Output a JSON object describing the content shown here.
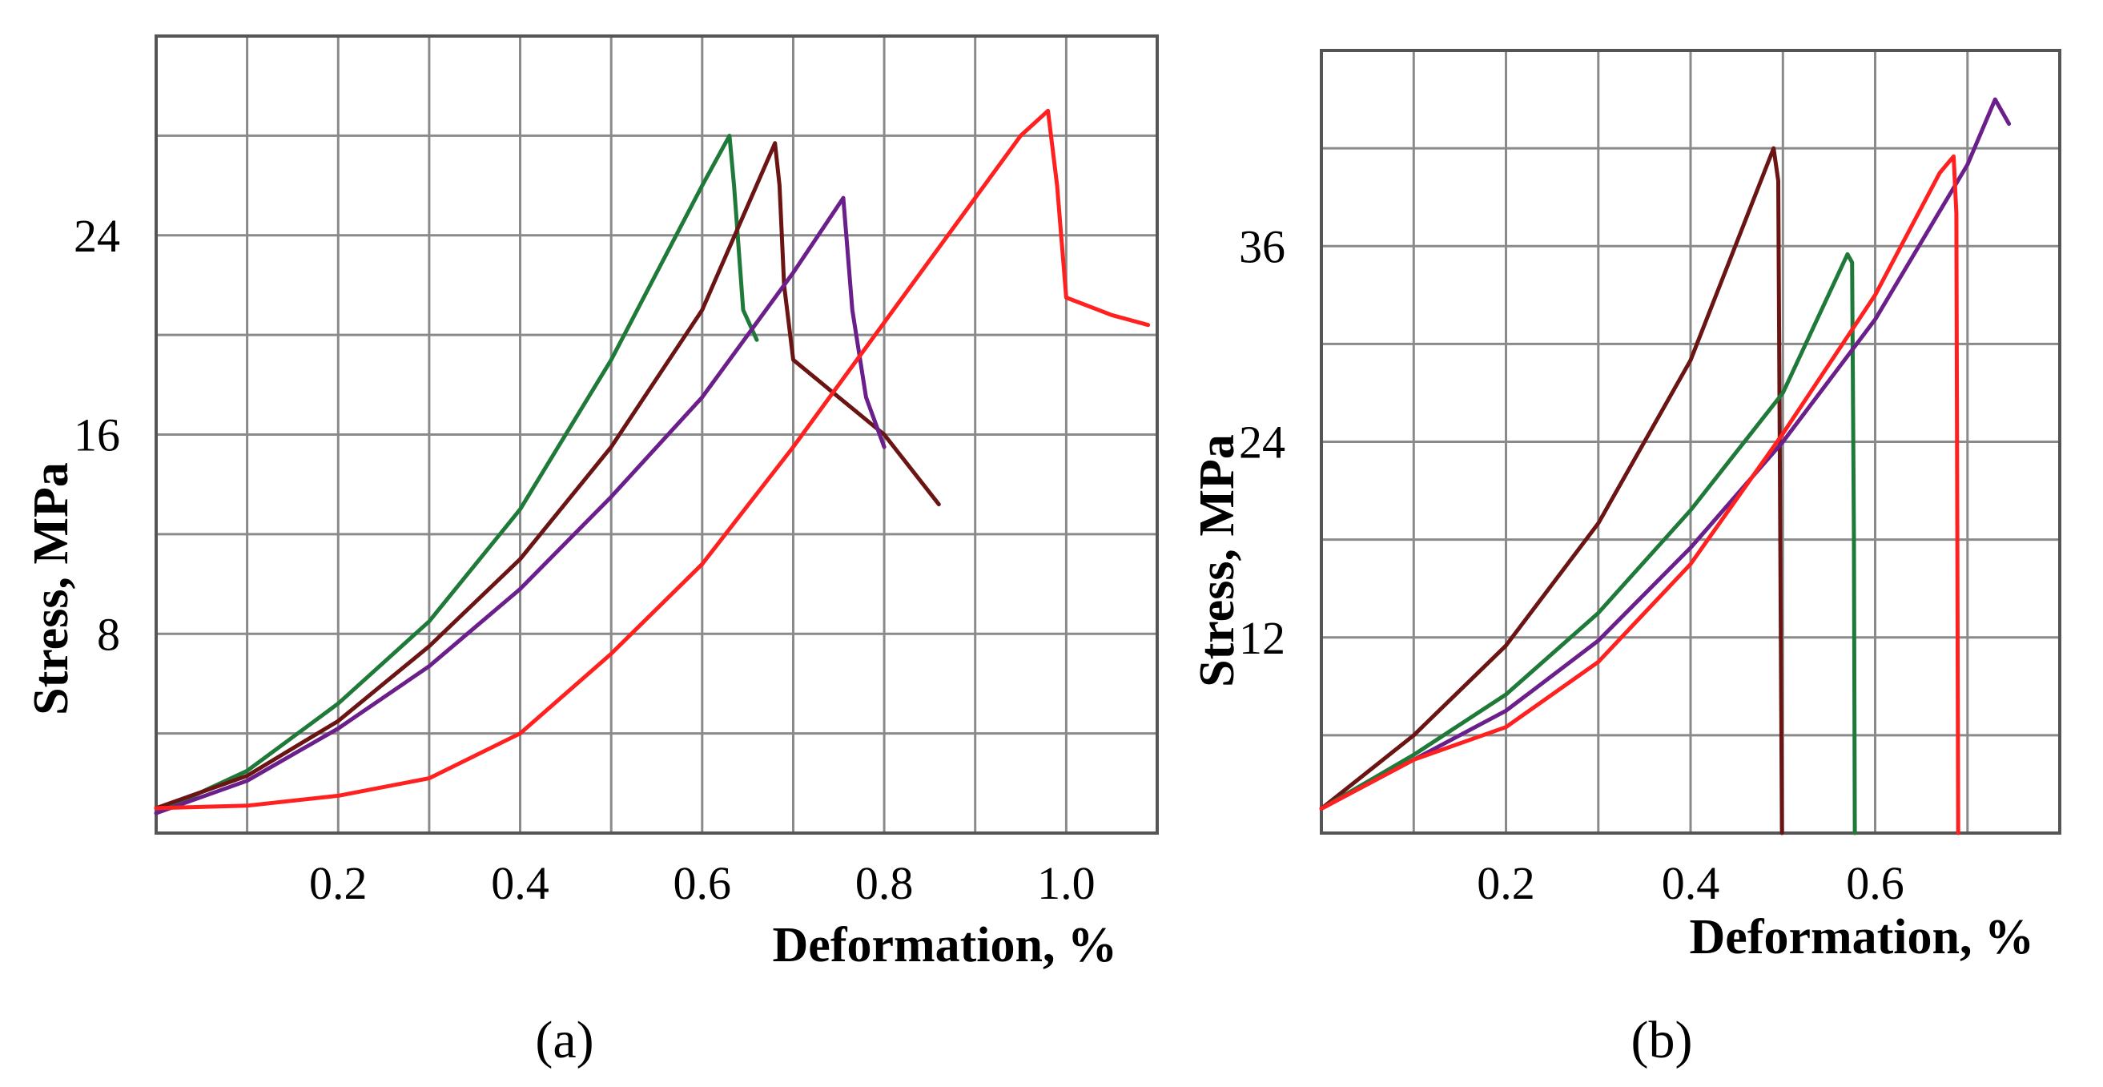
{
  "chart_data": [
    {
      "type": "line",
      "panel_label": "(a)",
      "xlabel": "Deformation, %",
      "ylabel": "Stress, MPa",
      "xlim": [
        0,
        1.1
      ],
      "ylim": [
        0,
        32
      ],
      "x_ticks": [
        0.2,
        0.4,
        0.6,
        0.8,
        1.0
      ],
      "x_tick_labels": [
        "0.2",
        "0.4",
        "0.6",
        "0.8",
        "1.0"
      ],
      "y_ticks": [
        8,
        16,
        24
      ],
      "y_tick_labels": [
        "8",
        "16",
        "24"
      ],
      "grid": true,
      "series": [
        {
          "color": "#1f7a3a",
          "x": [
            0,
            0.1,
            0.2,
            0.3,
            0.4,
            0.5,
            0.55,
            0.6,
            0.63,
            0.635,
            0.645,
            0.66
          ],
          "y": [
            0.8,
            2.5,
            5.2,
            8.5,
            13,
            19,
            22.5,
            26,
            28,
            26,
            21,
            19.8
          ]
        },
        {
          "color": "#6b1414",
          "x": [
            0,
            0.1,
            0.2,
            0.3,
            0.4,
            0.5,
            0.6,
            0.68,
            0.685,
            0.69,
            0.7,
            0.75,
            0.8,
            0.86
          ],
          "y": [
            1,
            2.3,
            4.5,
            7.5,
            11,
            15.5,
            21,
            27.7,
            26,
            22,
            19,
            17.5,
            16,
            13.2
          ]
        },
        {
          "color": "#6a1f8a",
          "x": [
            0,
            0.1,
            0.2,
            0.3,
            0.4,
            0.5,
            0.6,
            0.7,
            0.755,
            0.765,
            0.78,
            0.8
          ],
          "y": [
            0.8,
            2.1,
            4.2,
            6.7,
            9.8,
            13.5,
            17.5,
            22.5,
            25.5,
            21,
            17.5,
            15.5
          ]
        },
        {
          "color": "#ff2020",
          "x": [
            0,
            0.1,
            0.2,
            0.3,
            0.4,
            0.5,
            0.6,
            0.7,
            0.8,
            0.9,
            0.95,
            0.98,
            0.99,
            1.0,
            1.05,
            1.09
          ],
          "y": [
            1,
            1.1,
            1.5,
            2.2,
            4,
            7.2,
            10.8,
            15.5,
            20.5,
            25.5,
            28,
            29,
            26,
            21.5,
            20.8,
            20.4
          ]
        }
      ]
    },
    {
      "type": "line",
      "panel_label": "(b)",
      "xlabel": "Deformation, %",
      "ylabel": "Stress, MPa",
      "xlim": [
        0,
        0.8
      ],
      "ylim": [
        0,
        48
      ],
      "x_ticks": [
        0.2,
        0.4,
        0.6
      ],
      "x_tick_labels": [
        "0.2",
        "0.4",
        "0.6"
      ],
      "y_ticks": [
        12,
        24,
        36
      ],
      "y_tick_labels": [
        "12",
        "24",
        "36"
      ],
      "grid": true,
      "series": [
        {
          "color": "#6b1414",
          "x": [
            0,
            0.1,
            0.2,
            0.3,
            0.4,
            0.49,
            0.495,
            0.497,
            0.499
          ],
          "y": [
            1.5,
            6,
            11.5,
            19,
            29,
            42,
            40,
            20,
            0
          ]
        },
        {
          "color": "#1f7a3a",
          "x": [
            0,
            0.1,
            0.2,
            0.3,
            0.4,
            0.5,
            0.57,
            0.575,
            0.577,
            0.578
          ],
          "y": [
            1.5,
            4.8,
            8.5,
            13.5,
            19.8,
            27,
            35.5,
            35,
            18,
            0
          ]
        },
        {
          "color": "#6a1f8a",
          "x": [
            0,
            0.1,
            0.2,
            0.3,
            0.4,
            0.5,
            0.6,
            0.7,
            0.73,
            0.745
          ],
          "y": [
            1.5,
            4.5,
            7.5,
            11.8,
            17.5,
            24,
            31.5,
            41,
            45,
            43.5
          ]
        },
        {
          "color": "#ff2020",
          "x": [
            0,
            0.1,
            0.2,
            0.3,
            0.4,
            0.5,
            0.6,
            0.67,
            0.685,
            0.688,
            0.69
          ],
          "y": [
            1.5,
            4.5,
            6.5,
            10.5,
            16.5,
            24.5,
            33,
            40.5,
            41.5,
            38,
            0
          ]
        }
      ]
    }
  ]
}
